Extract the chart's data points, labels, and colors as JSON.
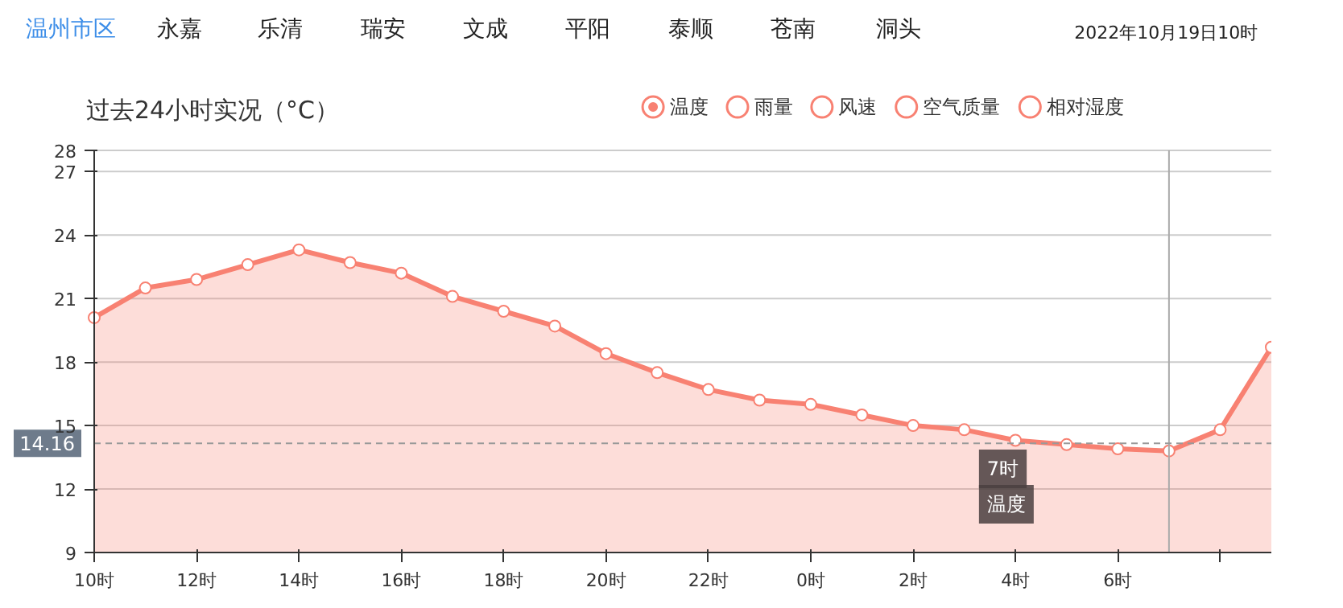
{
  "chart_data": {
    "type": "area",
    "title": "过去24小时实况（°C）",
    "x": [
      "2022-10-18T10:00",
      "2022-10-18T11:00",
      "2022-10-18T12:00",
      "2022-10-18T13:00",
      "2022-10-18T14:00",
      "2022-10-18T15:00",
      "2022-10-18T16:00",
      "2022-10-18T17:00",
      "2022-10-18T18:00",
      "2022-10-18T19:00",
      "2022-10-18T20:00",
      "2022-10-18T21:00",
      "2022-10-18T22:00",
      "2022-10-18T23:00",
      "2022-10-19T00:00",
      "2022-10-19T01:00",
      "2022-10-19T02:00",
      "2022-10-19T03:00",
      "2022-10-19T04:00",
      "2022-10-19T05:00",
      "2022-10-19T06:00",
      "2022-10-19T07:00",
      "2022-10-19T08:00",
      "2022-10-19T09:00"
    ],
    "series": [
      {
        "name": "温度",
        "color": "#f88172",
        "values": [
          20.1,
          21.5,
          21.9,
          22.6,
          23.3,
          22.7,
          22.2,
          21.1,
          20.4,
          19.7,
          18.4,
          17.5,
          16.7,
          16.2,
          16.0,
          15.5,
          15.0,
          14.8,
          14.3,
          14.1,
          13.9,
          13.8,
          14.8,
          18.7
        ]
      },
      {
        "name": "雨量",
        "color": "#f88172",
        "values": [
          null,
          null,
          null,
          null,
          null,
          null,
          null,
          null,
          null,
          null,
          null,
          null,
          null,
          null,
          null,
          null,
          null,
          null,
          null,
          null,
          null,
          null,
          null,
          null
        ]
      },
      {
        "name": "风速",
        "color": "#f88172",
        "values": [
          null,
          null,
          null,
          null,
          null,
          null,
          null,
          null,
          null,
          null,
          null,
          null,
          null,
          null,
          null,
          null,
          null,
          null,
          null,
          null,
          null,
          null,
          null,
          null
        ]
      },
      {
        "name": "空气质量",
        "color": "#f88172",
        "values": [
          null,
          null,
          null,
          null,
          null,
          null,
          null,
          null,
          null,
          null,
          null,
          null,
          null,
          null,
          null,
          null,
          null,
          null,
          null,
          null,
          null,
          null,
          null,
          null
        ]
      },
      {
        "name": "相对湿度",
        "color": "#f88172",
        "values": [
          null,
          null,
          null,
          null,
          null,
          null,
          null,
          null,
          null,
          null,
          null,
          null,
          null,
          null,
          null,
          null,
          null,
          null,
          null,
          null,
          null,
          null,
          null,
          null
        ]
      }
    ],
    "xlim": [
      "2022-10-18T10:00",
      "2022-10-19T09:00"
    ],
    "xticks": [
      {
        "value": "2022-10-18T10:00",
        "label": "10时"
      },
      {
        "value": "2022-10-18T12:00",
        "label": "12时"
      },
      {
        "value": "2022-10-18T14:00",
        "label": "14时"
      },
      {
        "value": "2022-10-18T16:00",
        "label": "16时"
      },
      {
        "value": "2022-10-18T18:00",
        "label": "18时"
      },
      {
        "value": "2022-10-18T20:00",
        "label": "20时"
      },
      {
        "value": "2022-10-18T22:00",
        "label": "22时"
      },
      {
        "value": "2022-10-19T00:00",
        "label": "0时"
      },
      {
        "value": "2022-10-19T02:00",
        "label": "2时"
      },
      {
        "value": "2022-10-19T04:00",
        "label": "4时"
      },
      {
        "value": "2022-10-19T06:00",
        "label": "6时"
      },
      {
        "value": "2022-10-19T08:00",
        "label": null
      }
    ],
    "ylim": [
      9,
      28
    ],
    "yticks": [
      9,
      12,
      15,
      18,
      21,
      24,
      27,
      28
    ],
    "ref_lines": [
      {
        "axis": "x",
        "value": "2022-10-19T07:00",
        "color": "#aaaaaa",
        "line_style": "solid"
      },
      {
        "axis": "y",
        "value": 14.16,
        "label": "14.16",
        "color": "#999999",
        "line_style": "dashed"
      }
    ],
    "annotations": [
      "温州市区",
      "永嘉",
      "乐清",
      "瑞安",
      "文成",
      "平阳",
      "泰顺",
      "苍南",
      "洞头",
      "2022年10月19日10时",
      "7时",
      "温度"
    ],
    "grid": "y",
    "legend": "top right",
    "marker": "circle",
    "line_style": "solid"
  }
}
